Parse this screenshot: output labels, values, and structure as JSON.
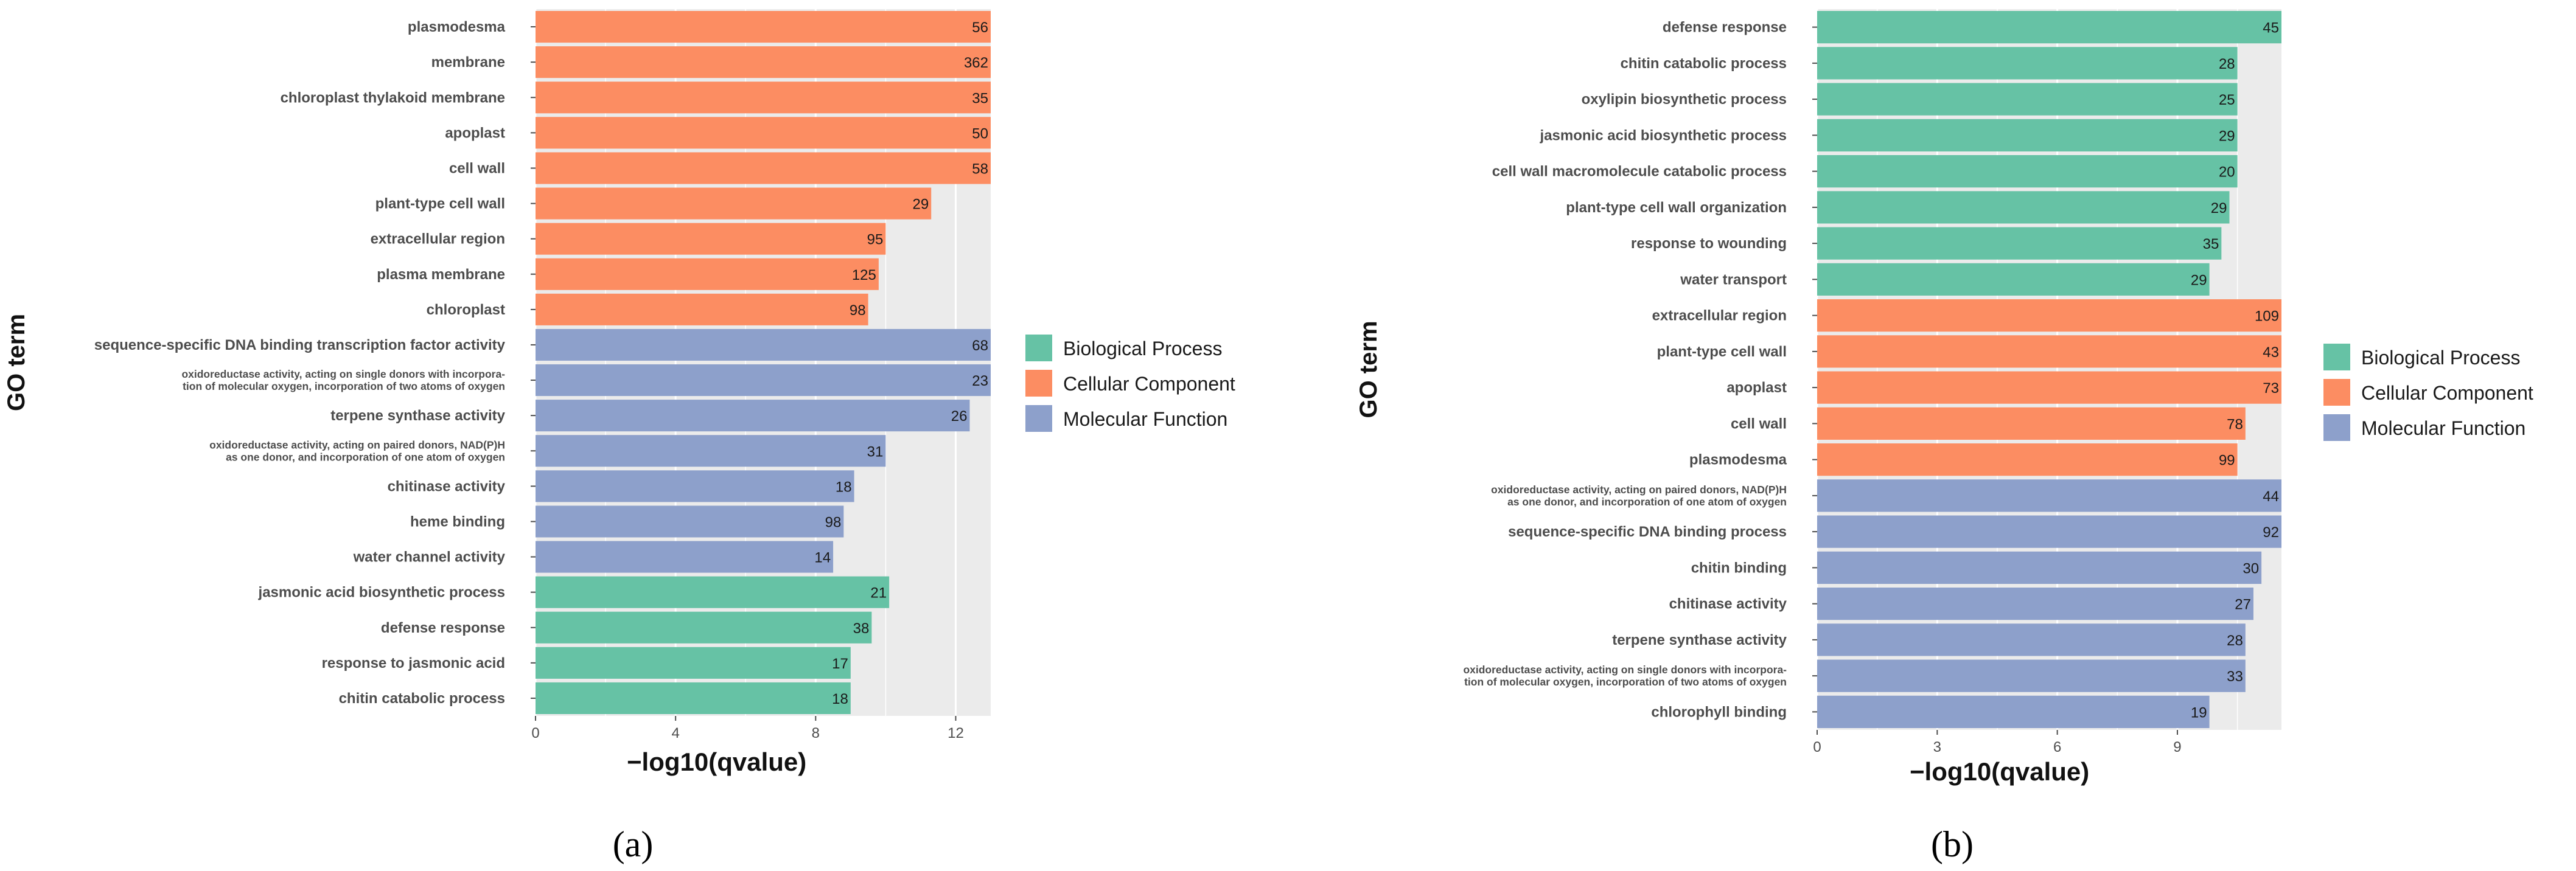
{
  "colors": {
    "Biological Process": "#66c2a5",
    "Cellular Component": "#fc8d62",
    "Molecular Function": "#8da0cb",
    "panel_bg": "#ebebeb",
    "grid": "#ffffff"
  },
  "chart_data": [
    {
      "type": "bar",
      "orientation": "horizontal",
      "caption": "(a)",
      "xlabel": "−log10(qvalue)",
      "ylabel": "GO term",
      "xlim": [
        0,
        13
      ],
      "xticks": [
        "0",
        "4",
        "8",
        "12"
      ],
      "legend": [
        "Biological Process",
        "Cellular Component",
        "Molecular Function"
      ],
      "legend_position": "right",
      "bars": [
        {
          "term": [
            "plasmodesma"
          ],
          "category": "Cellular Component",
          "value": 13.0,
          "count": "56"
        },
        {
          "term": [
            "membrane"
          ],
          "category": "Cellular Component",
          "value": 13.0,
          "count": "362"
        },
        {
          "term": [
            "chloroplast thylakoid membrane"
          ],
          "category": "Cellular Component",
          "value": 13.0,
          "count": "35"
        },
        {
          "term": [
            "apoplast"
          ],
          "category": "Cellular Component",
          "value": 13.0,
          "count": "50"
        },
        {
          "term": [
            "cell wall"
          ],
          "category": "Cellular Component",
          "value": 13.0,
          "count": "58"
        },
        {
          "term": [
            "plant-type cell wall"
          ],
          "category": "Cellular Component",
          "value": 11.3,
          "count": "29"
        },
        {
          "term": [
            "extracellular region"
          ],
          "category": "Cellular Component",
          "value": 10.0,
          "count": "95"
        },
        {
          "term": [
            "plasma membrane"
          ],
          "category": "Cellular Component",
          "value": 9.8,
          "count": "125"
        },
        {
          "term": [
            "chloroplast"
          ],
          "category": "Cellular Component",
          "value": 9.5,
          "count": "98"
        },
        {
          "term": [
            "sequence-specific DNA binding transcription factor activity"
          ],
          "category": "Molecular Function",
          "value": 13.0,
          "count": "68"
        },
        {
          "term": [
            "oxidoreductase activity, acting on single donors with incorpora-",
            "tion of molecular oxygen, incorporation of two atoms of oxygen"
          ],
          "category": "Molecular Function",
          "value": 13.0,
          "count": "23"
        },
        {
          "term": [
            "terpene synthase activity"
          ],
          "category": "Molecular Function",
          "value": 12.4,
          "count": "26"
        },
        {
          "term": [
            "oxidoreductase activity, acting on paired donors, NAD(P)H",
            "as one donor, and incorporation of one atom of oxygen"
          ],
          "category": "Molecular Function",
          "value": 10.0,
          "count": "31"
        },
        {
          "term": [
            "chitinase activity"
          ],
          "category": "Molecular Function",
          "value": 9.1,
          "count": "18"
        },
        {
          "term": [
            "heme binding"
          ],
          "category": "Molecular Function",
          "value": 8.8,
          "count": "98"
        },
        {
          "term": [
            "water channel activity"
          ],
          "category": "Molecular Function",
          "value": 8.5,
          "count": "14"
        },
        {
          "term": [
            "jasmonic acid biosynthetic process"
          ],
          "category": "Biological Process",
          "value": 10.1,
          "count": "21"
        },
        {
          "term": [
            "defense response"
          ],
          "category": "Biological Process",
          "value": 9.6,
          "count": "38"
        },
        {
          "term": [
            "response to jasmonic acid"
          ],
          "category": "Biological Process",
          "value": 9.0,
          "count": "17"
        },
        {
          "term": [
            "chitin catabolic process"
          ],
          "category": "Biological Process",
          "value": 9.0,
          "count": "18"
        }
      ]
    },
    {
      "type": "bar",
      "orientation": "horizontal",
      "caption": "(b)",
      "xlabel": "−log10(qvalue)",
      "ylabel": "GO term",
      "xlim": [
        0,
        11.6
      ],
      "xticks": [
        "0",
        "3",
        "6",
        "9"
      ],
      "legend": [
        "Biological Process",
        "Cellular Component",
        "Molecular Function"
      ],
      "legend_position": "right",
      "bars": [
        {
          "term": [
            "defense response"
          ],
          "category": "Biological Process",
          "value": 11.6,
          "count": "45"
        },
        {
          "term": [
            "chitin catabolic process"
          ],
          "category": "Biological Process",
          "value": 10.5,
          "count": "28"
        },
        {
          "term": [
            "oxylipin biosynthetic process"
          ],
          "category": "Biological Process",
          "value": 10.5,
          "count": "25"
        },
        {
          "term": [
            "jasmonic acid biosynthetic process"
          ],
          "category": "Biological Process",
          "value": 10.5,
          "count": "29"
        },
        {
          "term": [
            "cell wall macromolecule catabolic process"
          ],
          "category": "Biological Process",
          "value": 10.5,
          "count": "20"
        },
        {
          "term": [
            "plant-type cell wall organization"
          ],
          "category": "Biological Process",
          "value": 10.3,
          "count": "29"
        },
        {
          "term": [
            "response to wounding"
          ],
          "category": "Biological Process",
          "value": 10.1,
          "count": "35"
        },
        {
          "term": [
            "water transport"
          ],
          "category": "Biological Process",
          "value": 9.8,
          "count": "29"
        },
        {
          "term": [
            "extracellular region"
          ],
          "category": "Cellular Component",
          "value": 11.6,
          "count": "109"
        },
        {
          "term": [
            "plant-type cell wall"
          ],
          "category": "Cellular Component",
          "value": 11.6,
          "count": "43"
        },
        {
          "term": [
            "apoplast"
          ],
          "category": "Cellular Component",
          "value": 11.6,
          "count": "73"
        },
        {
          "term": [
            "cell wall"
          ],
          "category": "Cellular Component",
          "value": 10.7,
          "count": "78"
        },
        {
          "term": [
            "plasmodesma"
          ],
          "category": "Cellular Component",
          "value": 10.5,
          "count": "99"
        },
        {
          "term": [
            "oxidoreductase activity, acting on paired donors, NAD(P)H",
            "as one donor, and incorporation of one atom of oxygen"
          ],
          "category": "Molecular Function",
          "value": 11.6,
          "count": "44"
        },
        {
          "term": [
            "sequence-specific DNA binding process"
          ],
          "category": "Molecular Function",
          "value": 11.6,
          "count": "92"
        },
        {
          "term": [
            "chitin binding"
          ],
          "category": "Molecular Function",
          "value": 11.1,
          "count": "30"
        },
        {
          "term": [
            "chitinase activity"
          ],
          "category": "Molecular Function",
          "value": 10.9,
          "count": "27"
        },
        {
          "term": [
            "terpene synthase activity"
          ],
          "category": "Molecular Function",
          "value": 10.7,
          "count": "28"
        },
        {
          "term": [
            "oxidoreductase activity, acting on single donors with incorpora-",
            "tion of molecular oxygen, incorporation of two atoms of oxygen"
          ],
          "category": "Molecular Function",
          "value": 10.7,
          "count": "33"
        },
        {
          "term": [
            "chlorophyll binding"
          ],
          "category": "Molecular Function",
          "value": 9.8,
          "count": "19"
        }
      ]
    }
  ]
}
